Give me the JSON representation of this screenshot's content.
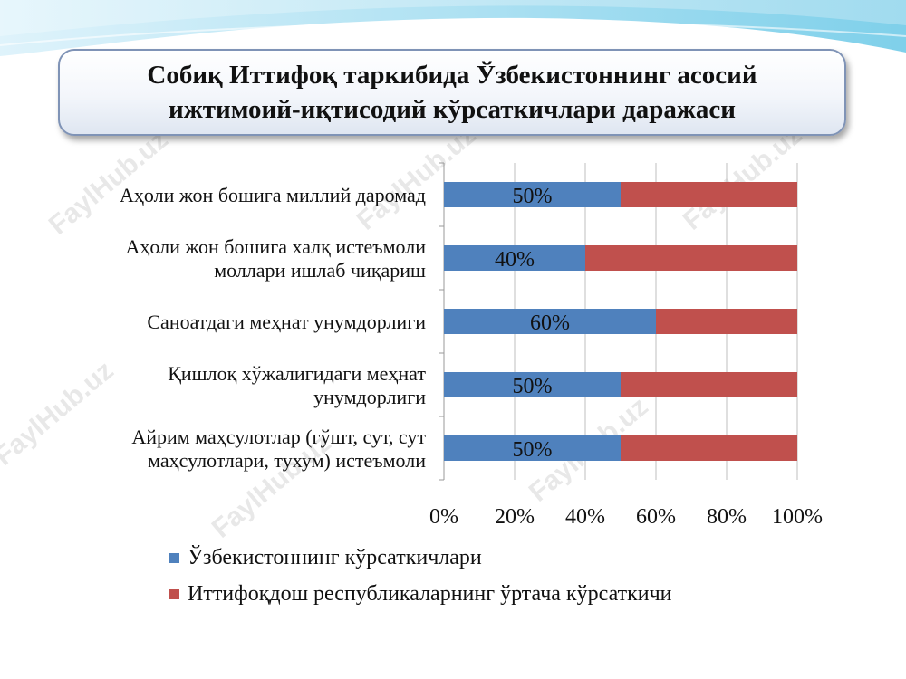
{
  "title": {
    "line1": "Собиқ Иттифоқ таркибида Ўзбекистоннинг асосий",
    "line2": "ижтимоий-иқтисодий кўрсаткичлари даражаси"
  },
  "watermark": "FaylHub.uz",
  "colors": {
    "uzbekistan": "#4f81bd",
    "union": "#c0504d"
  },
  "chart_data": {
    "type": "bar",
    "orientation": "horizontal",
    "stacked": "percent",
    "categories": [
      [
        "Аҳоли жон бошига миллий даромад"
      ],
      [
        "Аҳоли жон бошига халқ истеъмоли",
        "моллари ишлаб чиқариш"
      ],
      [
        "Саноатдаги меҳнат унумдорлиги"
      ],
      [
        "Қишлоқ хўжалигидаги меҳнат",
        "унумдорлиги"
      ],
      [
        "Айрим маҳсулотлар (гўшт, сут, сут",
        "маҳсулотлари, тухум) истеъмоли"
      ]
    ],
    "series": [
      {
        "name": "Ўзбекистоннинг кўрсаткичлари",
        "values": [
          50,
          40,
          60,
          50,
          50
        ]
      },
      {
        "name": "Иттифоқдош республикаларнинг ўртача кўрсаткичи",
        "values": [
          50,
          60,
          40,
          50,
          50
        ]
      }
    ],
    "data_labels": [
      "50%",
      "40%",
      "60%",
      "50%",
      "50%"
    ],
    "xticks": [
      "0%",
      "20%",
      "40%",
      "60%",
      "80%",
      "100%"
    ],
    "xlim": [
      0,
      100
    ],
    "grid": true,
    "legend": "bottom"
  }
}
